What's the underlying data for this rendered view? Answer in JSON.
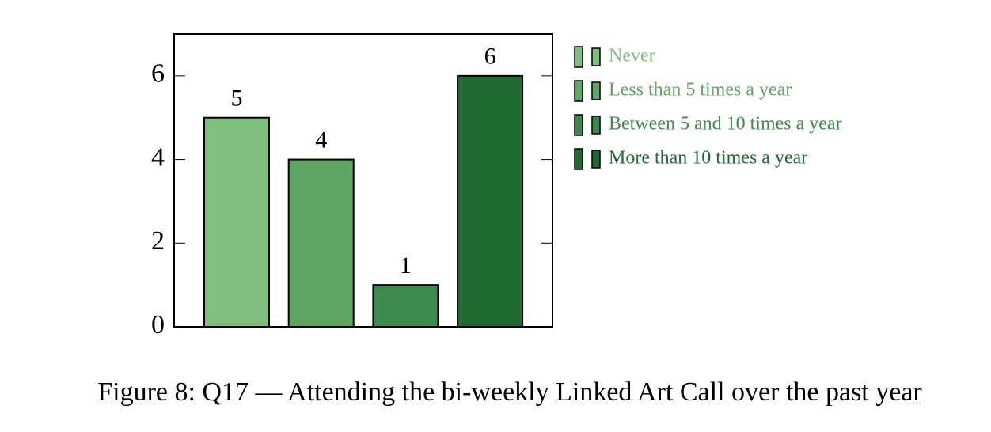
{
  "chart_data": {
    "type": "bar",
    "caption": "Figure 8: Q17 — Attending the bi-weekly Linked Art Call over the past year",
    "categories": [
      null
    ],
    "series": [
      {
        "name": "Never",
        "color": "#7fbf7f",
        "values": [
          5
        ]
      },
      {
        "name": "Less than 5 times a year",
        "color": "#5ea564",
        "values": [
          4
        ]
      },
      {
        "name": "Between 5 and 10 times a year",
        "color": "#3c8a4e",
        "values": [
          1
        ]
      },
      {
        "name": "More than 10 times a year",
        "color": "#1f6b33",
        "values": [
          6
        ]
      }
    ],
    "ylim": [
      0,
      7
    ],
    "yticks": [
      0,
      2,
      4,
      6
    ],
    "grid": false,
    "legend": "outside right"
  }
}
